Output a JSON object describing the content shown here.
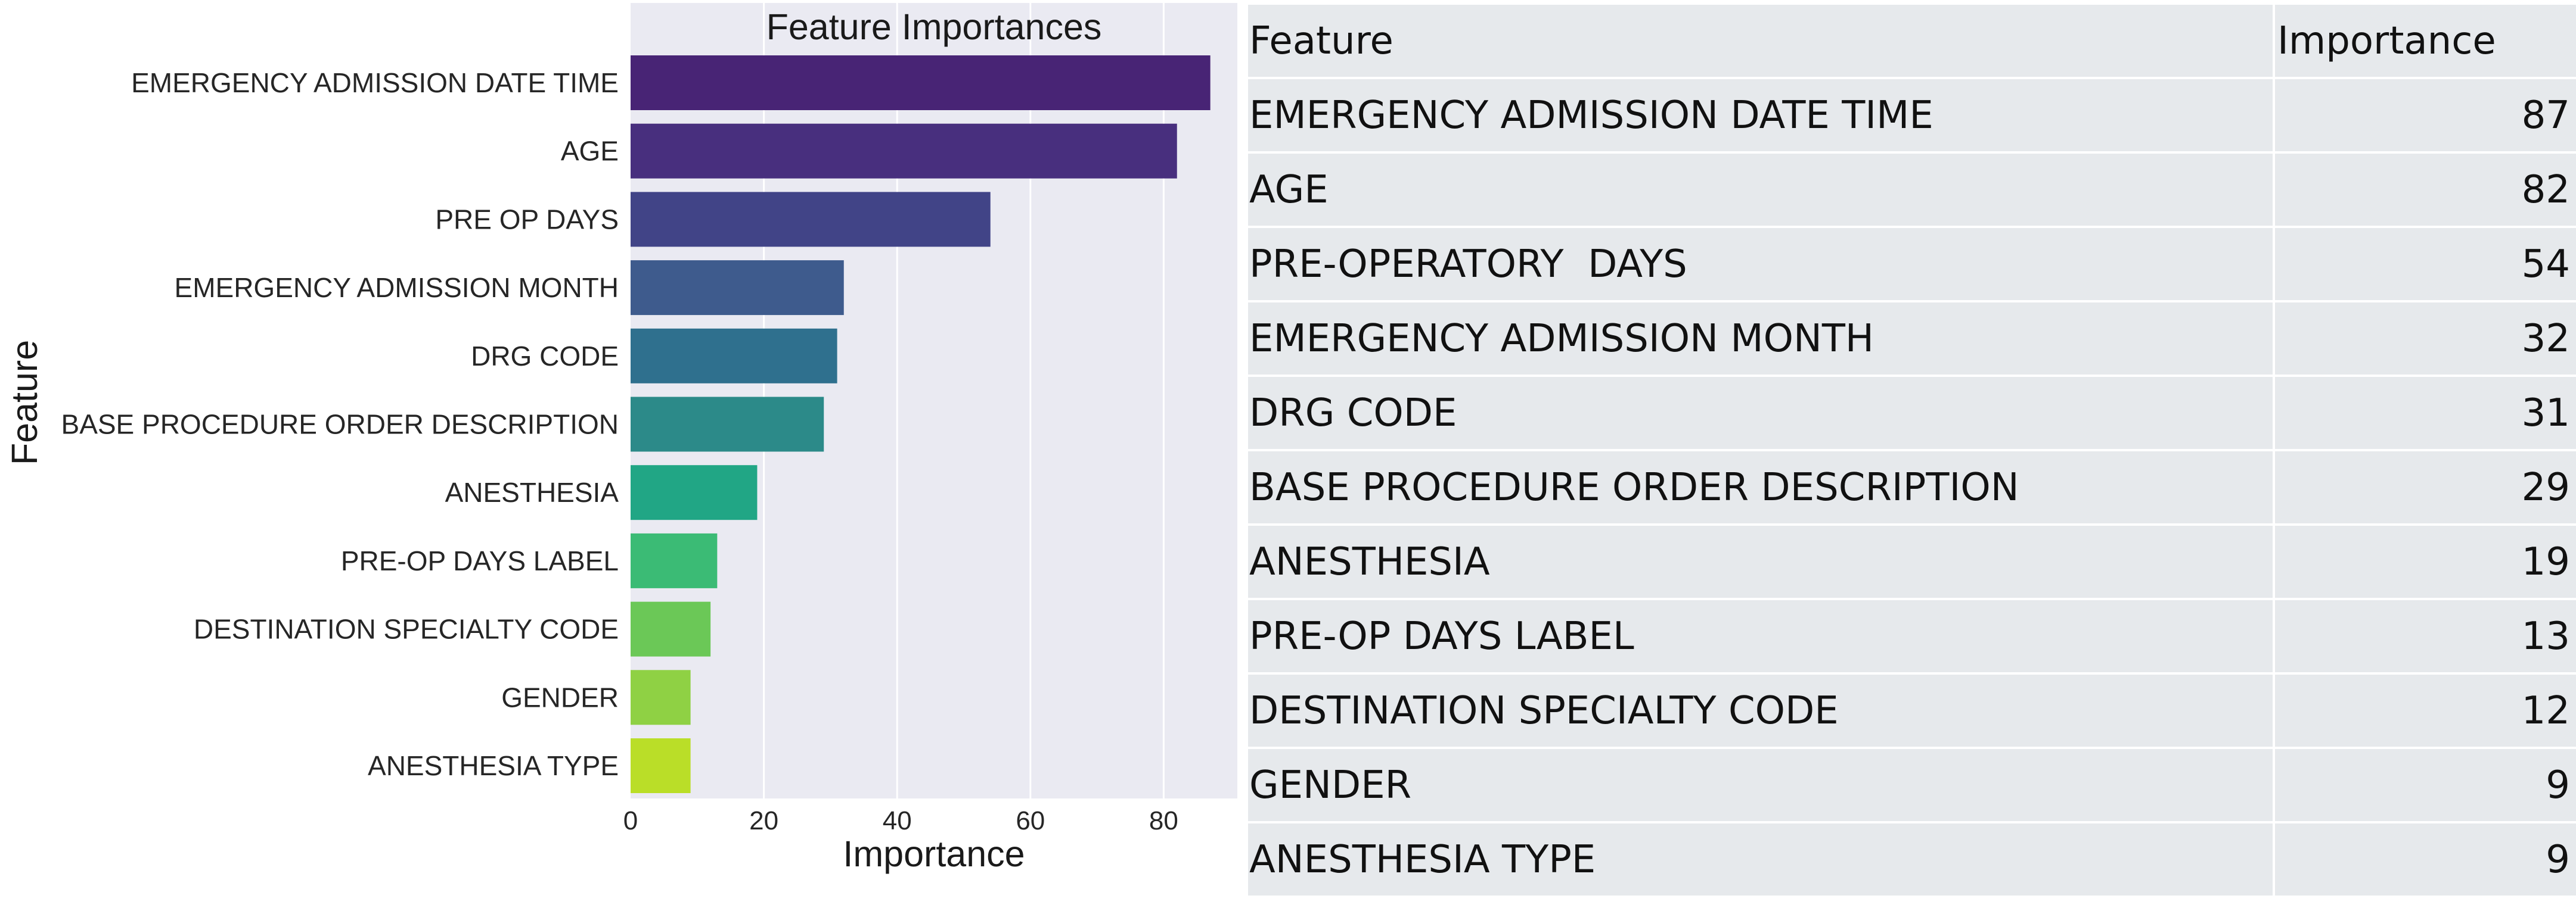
{
  "chart_data": {
    "type": "bar",
    "orientation": "horizontal",
    "title": "Feature Importances",
    "xlabel": "Importance",
    "ylabel": "Feature",
    "xlim": [
      0,
      91
    ],
    "xticks": [
      0,
      20,
      40,
      60,
      80
    ],
    "grid": true,
    "colormap": "viridis",
    "categories": [
      "EMERGENCY ADMISSION DATE TIME",
      "AGE",
      "PRE OP DAYS",
      "EMERGENCY ADMISSION MONTH",
      "DRG CODE",
      "BASE PROCEDURE ORDER DESCRIPTION",
      "ANESTHESIA",
      "PRE-OP DAYS LABEL",
      "DESTINATION SPECIALTY CODE",
      "GENDER",
      "ANESTHESIA TYPE"
    ],
    "values": [
      87,
      82,
      54,
      32,
      31,
      29,
      19,
      13,
      12,
      9,
      9
    ],
    "colors": [
      "#482475",
      "#482f7e",
      "#414487",
      "#3e5b8d",
      "#2f708e",
      "#2c8a89",
      "#21a685",
      "#3bbb75",
      "#6bc857",
      "#8fd144",
      "#bade28"
    ],
    "plot_background": "#eaeaf2"
  },
  "table": {
    "headers": [
      "Feature",
      "Importance"
    ],
    "rows": [
      [
        "EMERGENCY ADMISSION DATE TIME",
        "87"
      ],
      [
        "AGE",
        "82"
      ],
      [
        "PRE-OPERATORY  DAYS",
        "54"
      ],
      [
        "EMERGENCY ADMISSION MONTH",
        "32"
      ],
      [
        "DRG CODE",
        "31"
      ],
      [
        "BASE PROCEDURE ORDER DESCRIPTION",
        "29"
      ],
      [
        "ANESTHESIA",
        "19"
      ],
      [
        "PRE-OP DAYS LABEL",
        "13"
      ],
      [
        "DESTINATION SPECIALTY CODE",
        "12"
      ],
      [
        "GENDER",
        "9"
      ],
      [
        "ANESTHESIA TYPE",
        "9"
      ]
    ]
  }
}
